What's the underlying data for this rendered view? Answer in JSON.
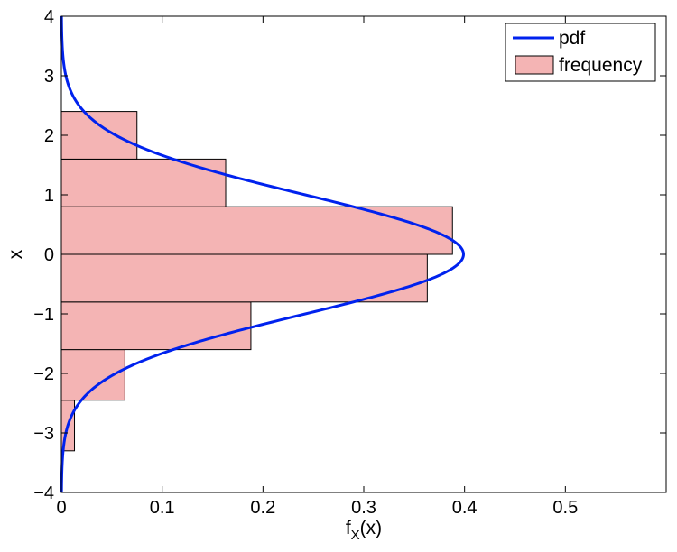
{
  "chart_data": {
    "type": "bar",
    "orientation": "horizontal",
    "xlabel_main": "f",
    "xlabel_sub": "X",
    "xlabel_arg": "(x)",
    "ylabel": "x",
    "xlim": [
      0,
      0.6
    ],
    "ylim": [
      -4,
      4
    ],
    "xticks": [
      0,
      0.1,
      0.2,
      0.3,
      0.4,
      0.5
    ],
    "xtick_labels": [
      "0",
      "0.1",
      "0.2",
      "0.3",
      "0.4",
      "0.5"
    ],
    "yticks": [
      -4,
      -3,
      -2,
      -1,
      0,
      1,
      2,
      3,
      4
    ],
    "ytick_labels": [
      "−4",
      "−3",
      "−2",
      "−1",
      "0",
      "1",
      "2",
      "3",
      "4"
    ],
    "grid": false,
    "legend_position": "top-right",
    "series": [
      {
        "name": "pdf",
        "kind": "line",
        "color": "#0022ee",
        "function": "standard normal density"
      },
      {
        "name": "frequency",
        "kind": "bar",
        "color": "#f4b4b4",
        "edge_color": "#000000",
        "bins": [
          {
            "y0": -3.3,
            "y1": -2.45,
            "value": 0.013
          },
          {
            "y0": -2.45,
            "y1": -1.6,
            "value": 0.063
          },
          {
            "y0": -1.6,
            "y1": -0.8,
            "value": 0.188
          },
          {
            "y0": -0.8,
            "y1": 0.0,
            "value": 0.363
          },
          {
            "y0": 0.0,
            "y1": 0.8,
            "value": 0.388
          },
          {
            "y0": 0.8,
            "y1": 1.6,
            "value": 0.163
          },
          {
            "y0": 1.6,
            "y1": 2.4,
            "value": 0.075
          }
        ]
      }
    ]
  }
}
